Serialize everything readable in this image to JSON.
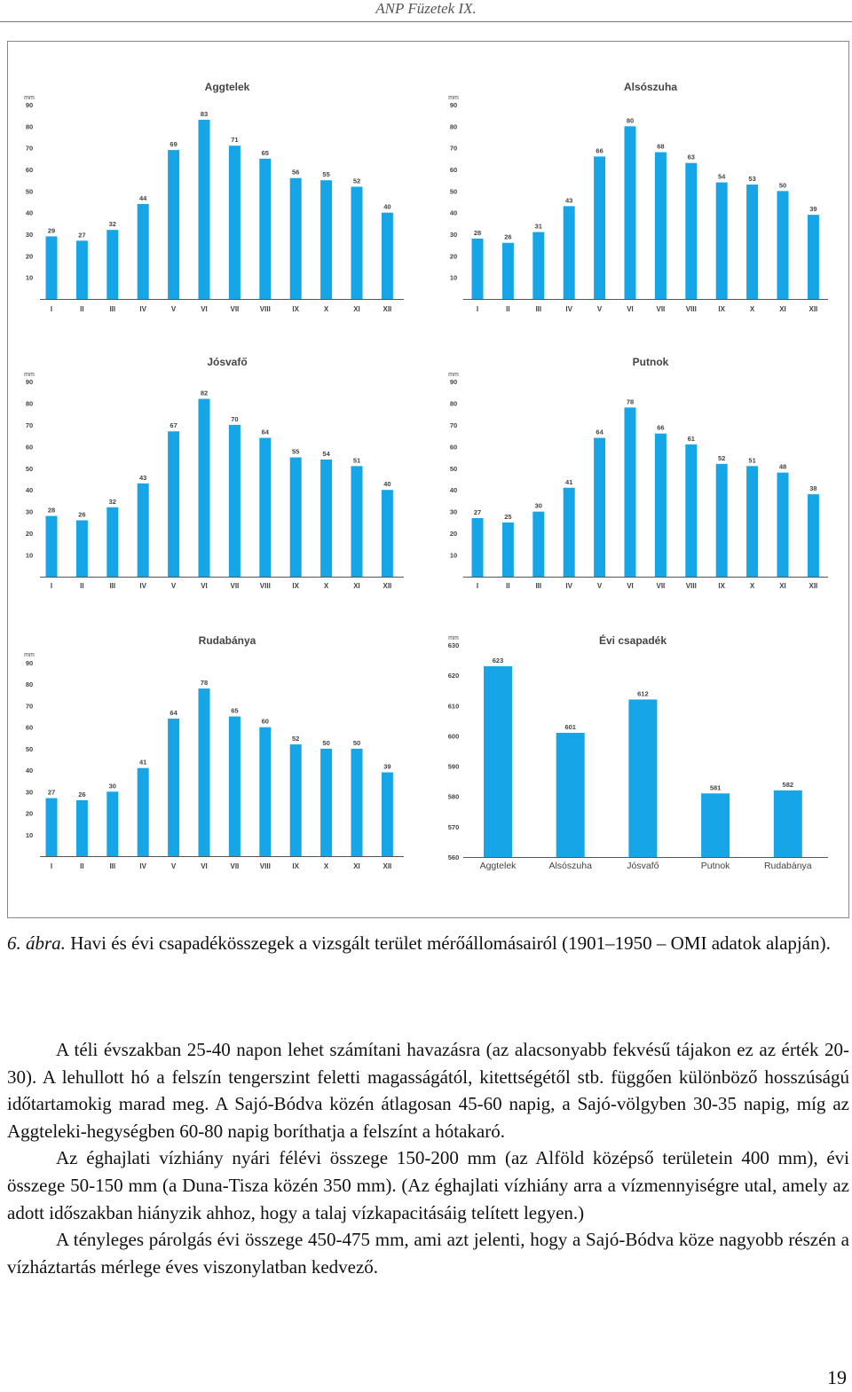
{
  "header": {
    "title": "ANP Füzetek IX."
  },
  "chart_data": [
    {
      "type": "bar",
      "title": "Aggtelek",
      "y_label": "mm",
      "color": "#16a6e8",
      "categories": [
        "I",
        "II",
        "III",
        "IV",
        "V",
        "VI",
        "VII",
        "VIII",
        "IX",
        "X",
        "XI",
        "XII"
      ],
      "values": [
        29,
        27,
        32,
        44,
        69,
        83,
        71,
        65,
        56,
        55,
        52,
        40
      ],
      "ylim": [
        0,
        90
      ],
      "yticks": [
        10,
        20,
        30,
        40,
        50,
        60,
        70,
        80,
        90
      ]
    },
    {
      "type": "bar",
      "title": "Alsószuha",
      "y_label": "mm",
      "color": "#16a6e8",
      "categories": [
        "I",
        "II",
        "III",
        "IV",
        "V",
        "VI",
        "VII",
        "VIII",
        "IX",
        "X",
        "XI",
        "XII"
      ],
      "values": [
        28,
        26,
        31,
        43,
        66,
        80,
        68,
        63,
        54,
        53,
        50,
        39
      ],
      "ylim": [
        0,
        90
      ],
      "yticks": [
        10,
        20,
        30,
        40,
        50,
        60,
        70,
        80,
        90
      ]
    },
    {
      "type": "bar",
      "title": "Jósvafő",
      "y_label": "mm",
      "color": "#16a6e8",
      "categories": [
        "I",
        "II",
        "III",
        "IV",
        "V",
        "VI",
        "VII",
        "VIII",
        "IX",
        "X",
        "XI",
        "XII"
      ],
      "values": [
        28,
        26,
        32,
        43,
        67,
        82,
        70,
        64,
        55,
        54,
        51,
        40
      ],
      "ylim": [
        0,
        90
      ],
      "yticks": [
        10,
        20,
        30,
        40,
        50,
        60,
        70,
        80,
        90
      ]
    },
    {
      "type": "bar",
      "title": "Putnok",
      "y_label": "mm",
      "color": "#16a6e8",
      "categories": [
        "I",
        "II",
        "III",
        "IV",
        "V",
        "VI",
        "VII",
        "VIII",
        "IX",
        "X",
        "XI",
        "XII"
      ],
      "values": [
        27,
        25,
        30,
        41,
        64,
        78,
        66,
        61,
        52,
        51,
        48,
        38
      ],
      "ylim": [
        0,
        90
      ],
      "yticks": [
        10,
        20,
        30,
        40,
        50,
        60,
        70,
        80,
        90
      ]
    },
    {
      "type": "bar",
      "title": "Rudabánya",
      "y_label": "mm",
      "color": "#16a6e8",
      "categories": [
        "I",
        "II",
        "III",
        "IV",
        "V",
        "VI",
        "VII",
        "VIII",
        "IX",
        "X",
        "XI",
        "XII"
      ],
      "values": [
        27,
        26,
        30,
        41,
        64,
        78,
        65,
        60,
        52,
        50,
        50,
        39
      ],
      "ylim": [
        0,
        90
      ],
      "yticks": [
        10,
        20,
        30,
        40,
        50,
        60,
        70,
        80,
        90
      ]
    },
    {
      "type": "bar",
      "title": "Évi csapadék",
      "y_label": "mm",
      "color": "#16a6e8",
      "categories": [
        "Aggtelek",
        "Alsószuha",
        "Jósvafő",
        "Putnok",
        "Rudabánya"
      ],
      "values": [
        623,
        601,
        612,
        581,
        582
      ],
      "ylim": [
        560,
        630
      ],
      "yticks": [
        560,
        570,
        580,
        590,
        600,
        610,
        620,
        630
      ]
    }
  ],
  "caption": {
    "label": "6. ábra.",
    "text": "Havi és évi csapadékösszegek a vizsgált terület mérőállomásairól (1901–1950 – OMI adatok alapján)."
  },
  "paragraphs": [
    "A téli évszakban 25-40 napon lehet számítani havazásra (az alacsonyabb fekvésű tájakon ez az érték 20-30). A lehullott hó a felszín tengerszint feletti magasságától, kitettségétől stb. függően különböző hosszúságú időtartamokig marad meg. A Sajó-Bódva közén átlagosan 45-60 napig, a Sajó-völgyben 30-35 napig, míg az Aggteleki-hegységben 60-80 napig boríthatja a felszínt a hótakaró.",
    "Az éghajlati vízhiány nyári félévi összege 150-200 mm (az Alföld középső területein 400 mm), évi összege 50-150 mm (a Duna-Tisza közén 350 mm). (Az éghajlati vízhiány arra a vízmennyiségre utal, amely az adott időszakban hiányzik ahhoz, hogy a talaj vízkapacitásáig telített legyen.)",
    "A tényleges párolgás évi összege 450-475 mm, ami azt jelenti, hogy a Sajó-Bódva köze nagyobb részén a vízháztartás mérlege éves viszonylatban kedvező."
  ],
  "page_number": "19"
}
